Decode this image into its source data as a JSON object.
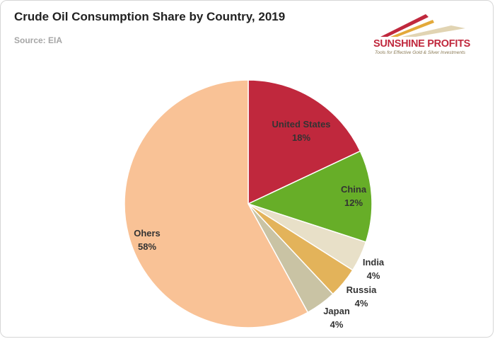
{
  "header": {
    "title": "Crude Oil Consumption Share by Country, 2019",
    "subtitle": "Source: EIA"
  },
  "logo": {
    "name": "SUNSHINE PROFITS",
    "tagline": "Tools for Effective Gold & Silver Investments"
  },
  "chart_data": {
    "type": "pie",
    "title": "Crude Oil Consumption Share by Country, 2019",
    "subtitle": "Source: EIA",
    "categories": [
      "United States",
      "China",
      "India",
      "Russia",
      "Japan",
      "Ohers"
    ],
    "values": [
      18,
      12,
      4,
      4,
      4,
      58
    ],
    "value_labels": [
      "18%",
      "12%",
      "4%",
      "4%",
      "4%",
      "58%"
    ],
    "colors": [
      "#c0283d",
      "#67ae28",
      "#e8e0c8",
      "#e3b35a",
      "#c9c3a4",
      "#f9c296"
    ],
    "legend": "none",
    "start_angle": "12 o'clock, clockwise"
  }
}
